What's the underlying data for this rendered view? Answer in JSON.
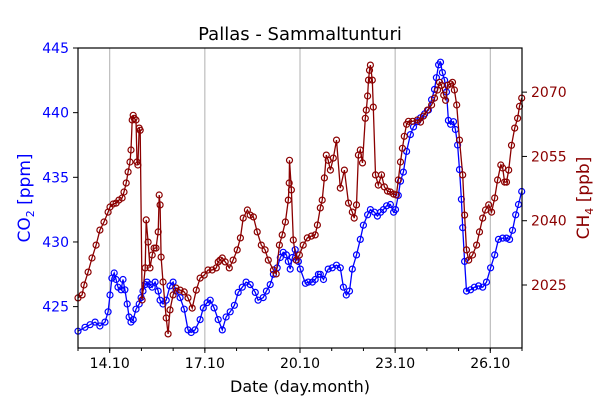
{
  "chart_data": {
    "type": "line",
    "title": "Pallas - Sammaltunturi",
    "xlabel": "Date (day.month)",
    "ylabel_left": {
      "main": "CO",
      "sub": "2",
      "unit": " [ppm]"
    },
    "ylabel_right": {
      "main": "CH",
      "sub": "4",
      "unit": " [ppb]"
    },
    "xlim": [
      13.0,
      27.0
    ],
    "ylim_left": [
      421.8,
      445
    ],
    "ylim_right": [
      2010.3,
      2080.3
    ],
    "xticks": [
      {
        "value": 14,
        "label": "14.10"
      },
      {
        "value": 17,
        "label": "17.10"
      },
      {
        "value": 20,
        "label": "20.10"
      },
      {
        "value": 23,
        "label": "23.10"
      },
      {
        "value": 26,
        "label": "26.10"
      }
    ],
    "xminor": [
      13.0,
      14.0,
      15.0,
      16.0,
      17.0,
      18.0,
      19.0,
      20.0,
      21.0,
      22.0,
      23.0,
      24.0,
      25.0,
      26.0,
      27.0
    ],
    "yticks_left": [
      {
        "value": 425,
        "label": "425"
      },
      {
        "value": 430,
        "label": "430"
      },
      {
        "value": 435,
        "label": "435"
      },
      {
        "value": 440,
        "label": "440"
      },
      {
        "value": 445,
        "label": "445"
      }
    ],
    "yticks_right": [
      {
        "value": 2025,
        "label": "2025"
      },
      {
        "value": 2040,
        "label": "2040"
      },
      {
        "value": 2055,
        "label": "2055"
      },
      {
        "value": 2070,
        "label": "2070"
      }
    ],
    "grid": "x-major",
    "series": [
      {
        "name": "CO2",
        "axis": "left",
        "color": "#0000ff",
        "x": [
          13.0,
          13.22,
          13.38,
          13.54,
          13.69,
          13.85,
          13.95,
          14.01,
          14.07,
          14.14,
          14.2,
          14.26,
          14.36,
          14.42,
          14.48,
          14.55,
          14.61,
          14.67,
          14.74,
          14.83,
          14.93,
          14.99,
          15.05,
          15.12,
          15.18,
          15.27,
          15.34,
          15.43,
          15.53,
          15.59,
          15.68,
          15.78,
          15.9,
          16.0,
          16.09,
          16.22,
          16.35,
          16.47,
          16.57,
          16.69,
          16.85,
          16.95,
          17.07,
          17.17,
          17.29,
          17.42,
          17.55,
          17.67,
          17.8,
          17.93,
          18.05,
          18.18,
          18.3,
          18.43,
          18.59,
          18.68,
          18.84,
          18.94,
          19.06,
          19.16,
          19.28,
          19.38,
          19.47,
          19.57,
          19.63,
          19.69,
          19.76,
          19.85,
          19.95,
          20.01,
          20.17,
          20.26,
          20.39,
          20.48,
          20.58,
          20.64,
          20.74,
          20.89,
          21.02,
          21.15,
          21.27,
          21.37,
          21.46,
          21.56,
          21.65,
          21.78,
          21.9,
          22.0,
          22.13,
          22.22,
          22.35,
          22.44,
          22.54,
          22.63,
          22.73,
          22.85,
          22.95,
          23.01,
          23.1,
          23.17,
          23.26,
          23.36,
          23.48,
          23.58,
          23.7,
          23.8,
          23.93,
          24.05,
          24.15,
          24.24,
          24.3,
          24.37,
          24.43,
          24.49,
          24.56,
          24.62,
          24.68,
          24.75,
          24.84,
          24.9,
          24.97,
          25.03,
          25.09,
          25.13,
          25.19,
          25.25,
          25.38,
          25.5,
          25.63,
          25.76,
          25.88,
          26.01,
          26.14,
          26.26,
          26.39,
          26.51,
          26.61,
          26.7,
          26.8,
          26.89,
          26.99
        ],
        "y": [
          423.1,
          423.4,
          423.6,
          423.8,
          423.5,
          423.8,
          424.6,
          425.9,
          427.2,
          427.6,
          427.1,
          426.5,
          426.3,
          427.1,
          426.3,
          425.2,
          424.2,
          423.8,
          424.0,
          424.8,
          425.2,
          425.7,
          426.2,
          426.7,
          426.9,
          426.7,
          426.5,
          426.9,
          426.2,
          425.5,
          425.2,
          425.5,
          426.6,
          426.9,
          426.2,
          425.7,
          424.8,
          423.2,
          423.0,
          423.2,
          424.0,
          424.9,
          425.3,
          425.5,
          424.9,
          424.0,
          423.2,
          424.2,
          424.6,
          425.1,
          426.1,
          426.5,
          426.9,
          426.7,
          426.1,
          425.5,
          425.7,
          426.2,
          426.7,
          427.5,
          428.0,
          428.8,
          429.2,
          429.0,
          428.5,
          427.9,
          428.8,
          429.4,
          428.5,
          427.9,
          426.8,
          426.9,
          426.9,
          427.1,
          427.5,
          427.5,
          427.1,
          427.9,
          428.0,
          428.2,
          428.0,
          426.5,
          425.9,
          426.2,
          427.9,
          429.0,
          430.2,
          431.3,
          432.1,
          432.5,
          432.3,
          432.0,
          432.3,
          432.5,
          432.8,
          432.9,
          432.3,
          432.5,
          433.6,
          434.7,
          435.4,
          437.0,
          438.3,
          438.9,
          439.3,
          439.6,
          439.9,
          440.2,
          441.0,
          441.8,
          442.7,
          443.7,
          443.9,
          443.1,
          442.5,
          441.6,
          439.4,
          439.1,
          439.3,
          438.7,
          437.5,
          435.6,
          433.3,
          431.1,
          428.5,
          426.2,
          426.3,
          426.5,
          426.6,
          426.5,
          426.9,
          428.0,
          429.0,
          430.2,
          430.3,
          430.3,
          430.2,
          430.9,
          432.1,
          432.9,
          433.9
        ]
      },
      {
        "name": "CH4",
        "axis": "right",
        "color": "#8b0000",
        "x": [
          13.0,
          13.13,
          13.19,
          13.32,
          13.44,
          13.57,
          13.69,
          13.82,
          13.95,
          14.01,
          14.11,
          14.2,
          14.29,
          14.39,
          14.45,
          14.52,
          14.58,
          14.64,
          14.67,
          14.71,
          14.74,
          14.77,
          14.83,
          14.86,
          14.89,
          14.93,
          14.96,
          15.02,
          15.12,
          15.15,
          15.21,
          15.27,
          15.34,
          15.4,
          15.46,
          15.53,
          15.56,
          15.59,
          15.62,
          15.68,
          15.78,
          15.84,
          15.9,
          16.0,
          16.09,
          16.22,
          16.35,
          16.47,
          16.6,
          16.73,
          16.85,
          16.98,
          17.1,
          17.23,
          17.36,
          17.42,
          17.48,
          17.55,
          17.64,
          17.77,
          17.89,
          18.02,
          18.12,
          18.21,
          18.34,
          18.43,
          18.53,
          18.65,
          18.78,
          18.9,
          19.0,
          19.16,
          19.25,
          19.35,
          19.44,
          19.54,
          19.63,
          19.66,
          19.67,
          19.73,
          19.79,
          19.88,
          19.98,
          20.1,
          20.23,
          20.36,
          20.48,
          20.55,
          20.64,
          20.7,
          20.77,
          20.83,
          20.89,
          20.96,
          21.05,
          21.15,
          21.27,
          21.4,
          21.53,
          21.65,
          21.71,
          21.78,
          21.84,
          21.9,
          21.97,
          22.06,
          22.09,
          22.13,
          22.16,
          22.19,
          22.22,
          22.28,
          22.31,
          22.38,
          22.47,
          22.57,
          22.66,
          22.76,
          22.85,
          22.95,
          23.04,
          23.1,
          23.17,
          23.23,
          23.29,
          23.36,
          23.42,
          23.55,
          23.7,
          23.8,
          23.89,
          24.02,
          24.15,
          24.24,
          24.34,
          24.4,
          24.46,
          24.53,
          24.59,
          24.65,
          24.75,
          24.81,
          24.87,
          24.94,
          25.03,
          25.13,
          25.19,
          25.25,
          25.32,
          25.44,
          25.57,
          25.66,
          25.76,
          25.85,
          25.95,
          26.04,
          26.14,
          26.23,
          26.33,
          26.39,
          26.45,
          26.51,
          26.58,
          26.67,
          26.77,
          26.86,
          26.92,
          26.99
        ],
        "y": [
          2022.0,
          2022.7,
          2025.0,
          2028.0,
          2031.3,
          2034.3,
          2037.8,
          2039.7,
          2042.0,
          2043.2,
          2043.9,
          2044.1,
          2044.8,
          2045.3,
          2046.7,
          2048.8,
          2051.4,
          2053.7,
          2056.5,
          2063.5,
          2064.6,
          2063.9,
          2063.5,
          2053.7,
          2053.0,
          2061.6,
          2061.1,
          2021.5,
          2029.0,
          2040.2,
          2035.0,
          2029.0,
          2032.0,
          2033.6,
          2033.6,
          2037.4,
          2046.0,
          2043.7,
          2031.5,
          2025.7,
          2017.3,
          2013.6,
          2019.2,
          2022.7,
          2024.3,
          2023.8,
          2023.4,
          2022.0,
          2019.6,
          2023.8,
          2026.6,
          2027.3,
          2028.5,
          2028.5,
          2029.0,
          2030.4,
          2030.8,
          2031.3,
          2030.4,
          2029.0,
          2030.8,
          2033.2,
          2036.0,
          2040.6,
          2042.5,
          2041.3,
          2040.9,
          2037.4,
          2034.3,
          2033.2,
          2030.8,
          2028.5,
          2027.6,
          2034.3,
          2036.7,
          2039.7,
          2044.8,
          2048.8,
          2054.1,
          2047.2,
          2035.5,
          2030.8,
          2032.0,
          2034.3,
          2036.0,
          2036.4,
          2036.7,
          2039.0,
          2043.0,
          2044.8,
          2050.0,
          2055.3,
          2054.1,
          2051.8,
          2054.6,
          2058.8,
          2047.6,
          2051.8,
          2044.1,
          2042.0,
          2040.6,
          2043.7,
          2055.3,
          2056.5,
          2053.5,
          2063.9,
          2065.8,
          2069.1,
          2072.8,
          2075.1,
          2076.3,
          2072.8,
          2066.5,
          2050.7,
          2048.3,
          2050.7,
          2047.9,
          2046.9,
          2046.7,
          2046.2,
          2046.0,
          2049.5,
          2053.7,
          2056.9,
          2059.7,
          2062.5,
          2063.2,
          2063.2,
          2063.5,
          2063.0,
          2064.4,
          2065.8,
          2067.0,
          2068.6,
          2070.5,
          2072.3,
          2071.6,
          2069.3,
          2068.1,
          2071.6,
          2071.9,
          2072.3,
          2070.5,
          2067.0,
          2058.8,
          2050.7,
          2041.3,
          2033.2,
          2030.8,
          2032.0,
          2034.3,
          2037.4,
          2040.6,
          2042.5,
          2043.7,
          2042.0,
          2045.3,
          2049.5,
          2053.0,
          2052.3,
          2049.0,
          2049.0,
          2051.8,
          2057.6,
          2061.6,
          2063.9,
          2066.7,
          2068.6
        ]
      }
    ]
  }
}
